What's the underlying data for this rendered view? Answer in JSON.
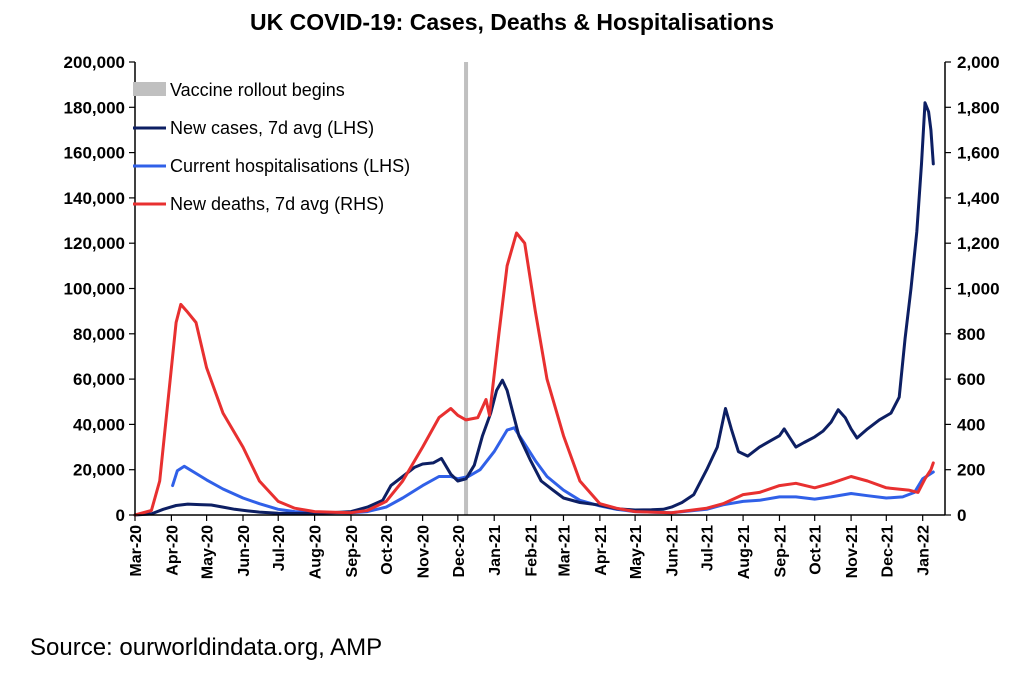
{
  "chart_data": {
    "type": "line",
    "title": "UK COVID-19: Cases, Deaths & Hospitalisations",
    "source": "Source: ourworldindata.org, AMP",
    "x_type": "date",
    "xlim": [
      "2020-03-01",
      "2022-01-20"
    ],
    "x_ticks": [
      {
        "date": "2020-03-01",
        "label": "Mar-20"
      },
      {
        "date": "2020-04-01",
        "label": "Apr-20"
      },
      {
        "date": "2020-05-01",
        "label": "May-20"
      },
      {
        "date": "2020-06-01",
        "label": "Jun-20"
      },
      {
        "date": "2020-07-01",
        "label": "Jul-20"
      },
      {
        "date": "2020-08-01",
        "label": "Aug-20"
      },
      {
        "date": "2020-09-01",
        "label": "Sep-20"
      },
      {
        "date": "2020-10-01",
        "label": "Oct-20"
      },
      {
        "date": "2020-11-01",
        "label": "Nov-20"
      },
      {
        "date": "2020-12-01",
        "label": "Dec-20"
      },
      {
        "date": "2021-01-01",
        "label": "Jan-21"
      },
      {
        "date": "2021-02-01",
        "label": "Feb-21"
      },
      {
        "date": "2021-03-01",
        "label": "Mar-21"
      },
      {
        "date": "2021-04-01",
        "label": "Apr-21"
      },
      {
        "date": "2021-05-01",
        "label": "May-21"
      },
      {
        "date": "2021-06-01",
        "label": "Jun-21"
      },
      {
        "date": "2021-07-01",
        "label": "Jul-21"
      },
      {
        "date": "2021-08-01",
        "label": "Aug-21"
      },
      {
        "date": "2021-09-01",
        "label": "Sep-21"
      },
      {
        "date": "2021-10-01",
        "label": "Oct-21"
      },
      {
        "date": "2021-11-01",
        "label": "Nov-21"
      },
      {
        "date": "2021-12-01",
        "label": "Dec-21"
      },
      {
        "date": "2022-01-01",
        "label": "Jan-22"
      }
    ],
    "y_left": {
      "ylim": [
        0,
        200000
      ],
      "ticks": [
        0,
        20000,
        40000,
        60000,
        80000,
        100000,
        120000,
        140000,
        160000,
        180000,
        200000
      ],
      "tick_labels": [
        "0",
        "20,000",
        "40,000",
        "60,000",
        "80,000",
        "100,000",
        "120,000",
        "140,000",
        "160,000",
        "180,000",
        "200,000"
      ]
    },
    "y_right": {
      "ylim": [
        0,
        2000
      ],
      "ticks": [
        0,
        200,
        400,
        600,
        800,
        1000,
        1200,
        1400,
        1600,
        1800,
        2000
      ],
      "tick_labels": [
        "0",
        "200",
        "400",
        "600",
        "800",
        "1,000",
        "1,200",
        "1,400",
        "1,600",
        "1,800",
        "2,000"
      ]
    },
    "annotations": [
      {
        "type": "vline",
        "date": "2020-12-08",
        "label": "Vaccine rollout begins",
        "color": "#c0c0c0"
      }
    ],
    "legend_position": "top-left",
    "grid": false,
    "series": [
      {
        "name": "New cases, 7d avg (LHS)",
        "axis": "left",
        "color": "#0d1f63",
        "points": [
          [
            "2020-03-01",
            0
          ],
          [
            "2020-03-15",
            500
          ],
          [
            "2020-03-25",
            2500
          ],
          [
            "2020-04-05",
            4200
          ],
          [
            "2020-04-15",
            4800
          ],
          [
            "2020-04-25",
            4600
          ],
          [
            "2020-05-05",
            4400
          ],
          [
            "2020-05-15",
            3500
          ],
          [
            "2020-05-25",
            2500
          ],
          [
            "2020-06-05",
            1800
          ],
          [
            "2020-06-15",
            1300
          ],
          [
            "2020-07-01",
            800
          ],
          [
            "2020-07-15",
            650
          ],
          [
            "2020-08-01",
            800
          ],
          [
            "2020-08-15",
            1000
          ],
          [
            "2020-09-01",
            1500
          ],
          [
            "2020-09-15",
            3500
          ],
          [
            "2020-09-28",
            6500
          ],
          [
            "2020-10-05",
            13000
          ],
          [
            "2020-10-15",
            17000
          ],
          [
            "2020-10-25",
            21000
          ],
          [
            "2020-11-01",
            22500
          ],
          [
            "2020-11-10",
            23000
          ],
          [
            "2020-11-17",
            25000
          ],
          [
            "2020-11-25",
            18000
          ],
          [
            "2020-12-01",
            15000
          ],
          [
            "2020-12-08",
            16000
          ],
          [
            "2020-12-15",
            22000
          ],
          [
            "2020-12-22",
            35000
          ],
          [
            "2020-12-29",
            45000
          ],
          [
            "2021-01-03",
            55000
          ],
          [
            "2021-01-08",
            59500
          ],
          [
            "2021-01-12",
            55000
          ],
          [
            "2021-01-17",
            45000
          ],
          [
            "2021-01-22",
            35000
          ],
          [
            "2021-02-01",
            24000
          ],
          [
            "2021-02-10",
            15000
          ],
          [
            "2021-02-20",
            11000
          ],
          [
            "2021-03-01",
            7500
          ],
          [
            "2021-03-15",
            5500
          ],
          [
            "2021-03-30",
            4500
          ],
          [
            "2021-04-15",
            2800
          ],
          [
            "2021-05-01",
            2200
          ],
          [
            "2021-05-15",
            2300
          ],
          [
            "2021-05-25",
            2500
          ],
          [
            "2021-06-01",
            3500
          ],
          [
            "2021-06-10",
            5500
          ],
          [
            "2021-06-20",
            9000
          ],
          [
            "2021-07-01",
            20000
          ],
          [
            "2021-07-10",
            30000
          ],
          [
            "2021-07-17",
            47000
          ],
          [
            "2021-07-22",
            38000
          ],
          [
            "2021-07-28",
            28000
          ],
          [
            "2021-08-05",
            26000
          ],
          [
            "2021-08-15",
            30000
          ],
          [
            "2021-08-25",
            33000
          ],
          [
            "2021-09-01",
            35000
          ],
          [
            "2021-09-05",
            38000
          ],
          [
            "2021-09-10",
            34000
          ],
          [
            "2021-09-15",
            30000
          ],
          [
            "2021-09-22",
            32000
          ],
          [
            "2021-10-01",
            34500
          ],
          [
            "2021-10-08",
            37000
          ],
          [
            "2021-10-15",
            41000
          ],
          [
            "2021-10-21",
            46500
          ],
          [
            "2021-10-27",
            43000
          ],
          [
            "2021-11-01",
            38000
          ],
          [
            "2021-11-06",
            34000
          ],
          [
            "2021-11-15",
            38000
          ],
          [
            "2021-11-25",
            42000
          ],
          [
            "2021-12-05",
            45000
          ],
          [
            "2021-12-12",
            52000
          ],
          [
            "2021-12-17",
            78000
          ],
          [
            "2021-12-22",
            100000
          ],
          [
            "2021-12-27",
            125000
          ],
          [
            "2021-12-31",
            155000
          ],
          [
            "2022-01-03",
            182000
          ],
          [
            "2022-01-06",
            178000
          ],
          [
            "2022-01-08",
            170000
          ],
          [
            "2022-01-10",
            155000
          ]
        ]
      },
      {
        "name": "Current hospitalisations (LHS)",
        "axis": "left",
        "color": "#3060e8",
        "points": [
          [
            "2020-04-02",
            13000
          ],
          [
            "2020-04-06",
            19500
          ],
          [
            "2020-04-12",
            21500
          ],
          [
            "2020-04-20",
            19000
          ],
          [
            "2020-05-01",
            15500
          ],
          [
            "2020-05-15",
            11500
          ],
          [
            "2020-06-01",
            7500
          ],
          [
            "2020-06-15",
            5000
          ],
          [
            "2020-07-01",
            2500
          ],
          [
            "2020-07-15",
            1500
          ],
          [
            "2020-08-01",
            1000
          ],
          [
            "2020-09-01",
            1000
          ],
          [
            "2020-09-15",
            1500
          ],
          [
            "2020-10-01",
            3500
          ],
          [
            "2020-10-15",
            7500
          ],
          [
            "2020-11-01",
            13000
          ],
          [
            "2020-11-15",
            17000
          ],
          [
            "2020-11-25",
            17000
          ],
          [
            "2020-12-01",
            16000
          ],
          [
            "2020-12-10",
            17000
          ],
          [
            "2020-12-20",
            20000
          ],
          [
            "2021-01-01",
            28000
          ],
          [
            "2021-01-12",
            37500
          ],
          [
            "2021-01-18",
            38500
          ],
          [
            "2021-01-25",
            33000
          ],
          [
            "2021-02-05",
            24000
          ],
          [
            "2021-02-15",
            17000
          ],
          [
            "2021-03-01",
            11000
          ],
          [
            "2021-03-15",
            6500
          ],
          [
            "2021-04-01",
            4000
          ],
          [
            "2021-04-15",
            2500
          ],
          [
            "2021-05-01",
            1500
          ],
          [
            "2021-06-01",
            1000
          ],
          [
            "2021-07-01",
            2500
          ],
          [
            "2021-07-15",
            4500
          ],
          [
            "2021-08-01",
            6000
          ],
          [
            "2021-08-15",
            6500
          ],
          [
            "2021-09-01",
            8000
          ],
          [
            "2021-09-15",
            8000
          ],
          [
            "2021-10-01",
            7000
          ],
          [
            "2021-10-15",
            8000
          ],
          [
            "2021-11-01",
            9500
          ],
          [
            "2021-11-15",
            8500
          ],
          [
            "2021-12-01",
            7500
          ],
          [
            "2021-12-15",
            8000
          ],
          [
            "2021-12-25",
            10000
          ],
          [
            "2022-01-01",
            16000
          ],
          [
            "2022-01-10",
            19000
          ]
        ]
      },
      {
        "name": "New deaths, 7d avg (RHS)",
        "axis": "right",
        "color": "#e83030",
        "points": [
          [
            "2020-03-01",
            0
          ],
          [
            "2020-03-15",
            20
          ],
          [
            "2020-03-22",
            150
          ],
          [
            "2020-03-29",
            500
          ],
          [
            "2020-04-05",
            850
          ],
          [
            "2020-04-09",
            930
          ],
          [
            "2020-04-14",
            900
          ],
          [
            "2020-04-22",
            850
          ],
          [
            "2020-05-01",
            650
          ],
          [
            "2020-05-15",
            450
          ],
          [
            "2020-06-01",
            300
          ],
          [
            "2020-06-15",
            150
          ],
          [
            "2020-07-01",
            60
          ],
          [
            "2020-07-15",
            30
          ],
          [
            "2020-08-01",
            15
          ],
          [
            "2020-09-01",
            10
          ],
          [
            "2020-09-15",
            20
          ],
          [
            "2020-10-01",
            60
          ],
          [
            "2020-10-15",
            150
          ],
          [
            "2020-11-01",
            300
          ],
          [
            "2020-11-15",
            430
          ],
          [
            "2020-11-25",
            470
          ],
          [
            "2020-12-01",
            440
          ],
          [
            "2020-12-08",
            420
          ],
          [
            "2020-12-18",
            430
          ],
          [
            "2020-12-25",
            510
          ],
          [
            "2020-12-28",
            440
          ],
          [
            "2021-01-05",
            800
          ],
          [
            "2021-01-12",
            1100
          ],
          [
            "2021-01-20",
            1245
          ],
          [
            "2021-01-27",
            1200
          ],
          [
            "2021-02-05",
            900
          ],
          [
            "2021-02-15",
            600
          ],
          [
            "2021-03-01",
            350
          ],
          [
            "2021-03-15",
            150
          ],
          [
            "2021-04-01",
            50
          ],
          [
            "2021-04-15",
            30
          ],
          [
            "2021-05-01",
            15
          ],
          [
            "2021-06-01",
            10
          ],
          [
            "2021-07-01",
            30
          ],
          [
            "2021-07-15",
            50
          ],
          [
            "2021-08-01",
            90
          ],
          [
            "2021-08-15",
            100
          ],
          [
            "2021-09-01",
            130
          ],
          [
            "2021-09-15",
            140
          ],
          [
            "2021-10-01",
            120
          ],
          [
            "2021-10-15",
            140
          ],
          [
            "2021-11-01",
            170
          ],
          [
            "2021-11-15",
            150
          ],
          [
            "2021-12-01",
            120
          ],
          [
            "2021-12-20",
            110
          ],
          [
            "2021-12-28",
            100
          ],
          [
            "2022-01-03",
            160
          ],
          [
            "2022-01-08",
            200
          ],
          [
            "2022-01-10",
            230
          ]
        ]
      }
    ]
  }
}
